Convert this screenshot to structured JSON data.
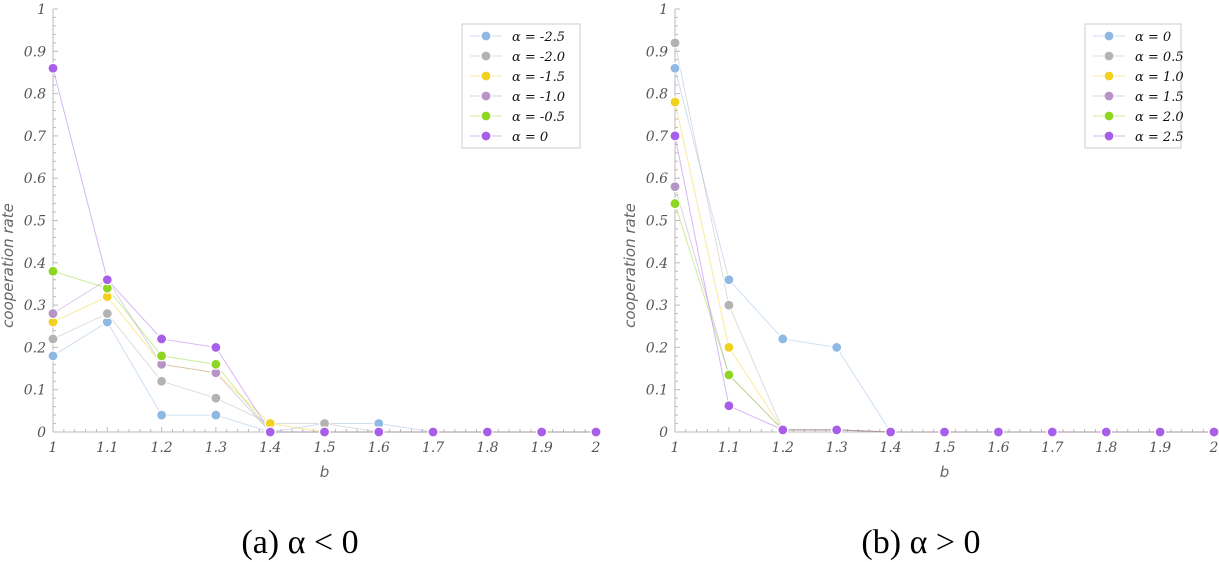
{
  "chart_data": [
    {
      "type": "line",
      "title": "",
      "xlabel": "b",
      "ylabel": "cooperation rate",
      "caption": "(a) α < 0",
      "xlim": [
        1,
        2
      ],
      "ylim": [
        0,
        1
      ],
      "x": [
        1,
        1.1,
        1.2,
        1.3,
        1.4,
        1.5,
        1.6,
        1.7,
        1.8,
        1.9,
        2
      ],
      "x_ticks": [
        "1",
        "1.1",
        "1.2",
        "1.3",
        "1.4",
        "1.5",
        "1.6",
        "1.7",
        "1.8",
        "1.9",
        "2"
      ],
      "y_ticks": [
        "0",
        "0.1",
        "0.2",
        "0.3",
        "0.4",
        "0.5",
        "0.6",
        "0.7",
        "0.8",
        "0.9",
        "1"
      ],
      "legend_position": "top-right",
      "series": [
        {
          "name": "α = -2.5",
          "color": "#8fb9e3",
          "values": [
            0.18,
            0.26,
            0.04,
            0.04,
            0.0,
            0.02,
            0.02,
            0.0,
            0.0,
            0.0,
            0.0
          ]
        },
        {
          "name": "α = -2.0",
          "color": "#b3b3b3",
          "values": [
            0.22,
            0.28,
            0.12,
            0.08,
            0.02,
            0.02,
            0.0,
            0.0,
            0.0,
            0.0,
            0.0
          ]
        },
        {
          "name": "α = -1.5",
          "color": "#f2d01e",
          "values": [
            0.26,
            0.32,
            0.16,
            0.14,
            0.02,
            0.0,
            0.0,
            0.0,
            0.0,
            0.0,
            0.0
          ]
        },
        {
          "name": "α = -1.0",
          "color": "#b694c6",
          "values": [
            0.28,
            0.36,
            0.16,
            0.14,
            0.0,
            0.0,
            0.0,
            0.0,
            0.0,
            0.0,
            0.0
          ]
        },
        {
          "name": "α = -0.5",
          "color": "#8ed622",
          "values": [
            0.38,
            0.34,
            0.18,
            0.16,
            0.0,
            0.0,
            0.0,
            0.0,
            0.0,
            0.0,
            0.0
          ]
        },
        {
          "name": "α = 0",
          "color": "#a75ee8",
          "values": [
            0.86,
            0.36,
            0.22,
            0.2,
            0.0,
            0.0,
            0.0,
            0.0,
            0.0,
            0.0,
            0.0
          ]
        }
      ]
    },
    {
      "type": "line",
      "title": "",
      "xlabel": "b",
      "ylabel": "cooperation rate",
      "caption": "(b) α > 0",
      "xlim": [
        1,
        2
      ],
      "ylim": [
        0,
        1
      ],
      "x": [
        1,
        1.1,
        1.2,
        1.3,
        1.4,
        1.5,
        1.6,
        1.7,
        1.8,
        1.9,
        2
      ],
      "x_ticks": [
        "1",
        "1.1",
        "1.2",
        "1.3",
        "1.4",
        "1.5",
        "1.6",
        "1.7",
        "1.8",
        "1.9",
        "2"
      ],
      "y_ticks": [
        "0",
        "0.1",
        "0.2",
        "0.3",
        "0.4",
        "0.5",
        "0.6",
        "0.7",
        "0.8",
        "0.9",
        "1"
      ],
      "legend_position": "top-right",
      "series": [
        {
          "name": "α = 0",
          "color": "#8fb9e3",
          "values": [
            0.86,
            0.36,
            0.22,
            0.2,
            0.0,
            0.0,
            0.0,
            0.0,
            0.0,
            0.0,
            0.0
          ]
        },
        {
          "name": "α = 0.5",
          "color": "#b3b3b3",
          "values": [
            0.92,
            0.3,
            0.005,
            0.005,
            0.0,
            0.0,
            0.0,
            0.0,
            0.0,
            0.0,
            0.0
          ]
        },
        {
          "name": "α = 1.0",
          "color": "#f2d01e",
          "values": [
            0.78,
            0.2,
            0.005,
            0.005,
            0.0,
            0.0,
            0.0,
            0.0,
            0.0,
            0.0,
            0.0
          ]
        },
        {
          "name": "α = 1.5",
          "color": "#b694c6",
          "values": [
            0.58,
            0.135,
            0.005,
            0.005,
            0.0,
            0.0,
            0.0,
            0.0,
            0.0,
            0.0,
            0.0
          ]
        },
        {
          "name": "α = 2.0",
          "color": "#8ed622",
          "values": [
            0.54,
            0.135,
            0.005,
            0.005,
            0.0,
            0.0,
            0.0,
            0.0,
            0.0,
            0.0,
            0.0
          ]
        },
        {
          "name": "α = 2.5",
          "color": "#a75ee8",
          "values": [
            0.7,
            0.062,
            0.005,
            0.005,
            0.0,
            0.0,
            0.0,
            0.0,
            0.0,
            0.0,
            0.0
          ]
        }
      ]
    }
  ]
}
